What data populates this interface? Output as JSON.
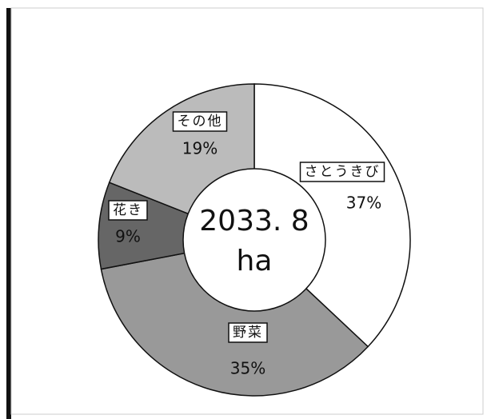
{
  "chart_data": {
    "type": "donut",
    "categories": [
      "さとうきび",
      "野菜",
      "花き",
      "その他"
    ],
    "values": [
      37,
      35,
      9,
      19
    ],
    "value_labels": [
      "37%",
      "35%",
      "9%",
      "19%"
    ],
    "colors": [
      "#ffffff",
      "#999999",
      "#666666",
      "#bbbbbb"
    ],
    "center_label": [
      "2033. 8",
      "ha"
    ]
  }
}
